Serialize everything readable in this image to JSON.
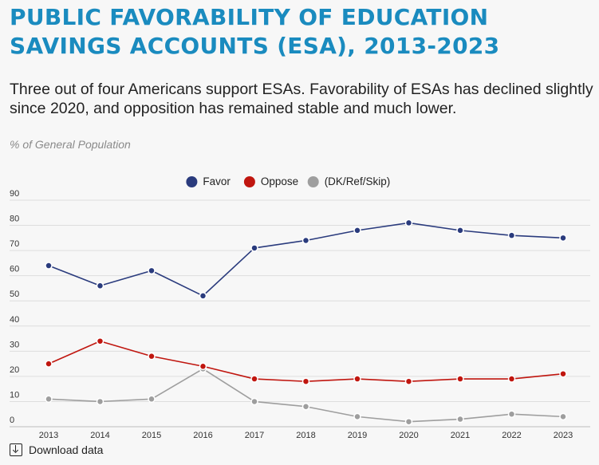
{
  "chart_data": {
    "type": "line",
    "title": "PUBLIC FAVORABILITY OF EDUCATION SAVINGS ACCOUNTS (ESA), 2013-2023",
    "subtitle": "Three out of four Americans support ESAs. Favorability of ESAs has declined slightly since 2020, and opposition has remained stable and much lower.",
    "note": "% of General Population",
    "x": [
      "2013",
      "2014",
      "2015",
      "2016",
      "2017",
      "2018",
      "2019",
      "2020",
      "2021",
      "2022",
      "2023"
    ],
    "y_ticks": [
      0,
      10,
      20,
      30,
      40,
      50,
      60,
      70,
      80,
      90
    ],
    "ylim": [
      0,
      90
    ],
    "grid": true,
    "legend_position": "top-center",
    "series": [
      {
        "name": "Favor",
        "color": "#2a3b7d",
        "values": [
          64,
          56,
          62,
          52,
          71,
          74,
          78,
          81,
          78,
          76,
          75
        ]
      },
      {
        "name": "Oppose",
        "color": "#c0160f",
        "values": [
          25,
          34,
          28,
          24,
          19,
          18,
          19,
          18,
          19,
          19,
          21
        ]
      },
      {
        "name": "(DK/Ref/Skip)",
        "color": "#9e9e9e",
        "values": [
          11,
          10,
          11,
          23,
          10,
          8,
          4,
          2,
          3,
          5,
          4
        ]
      }
    ]
  },
  "footer": {
    "download_label": "Download data",
    "download_icon": "download-icon"
  }
}
